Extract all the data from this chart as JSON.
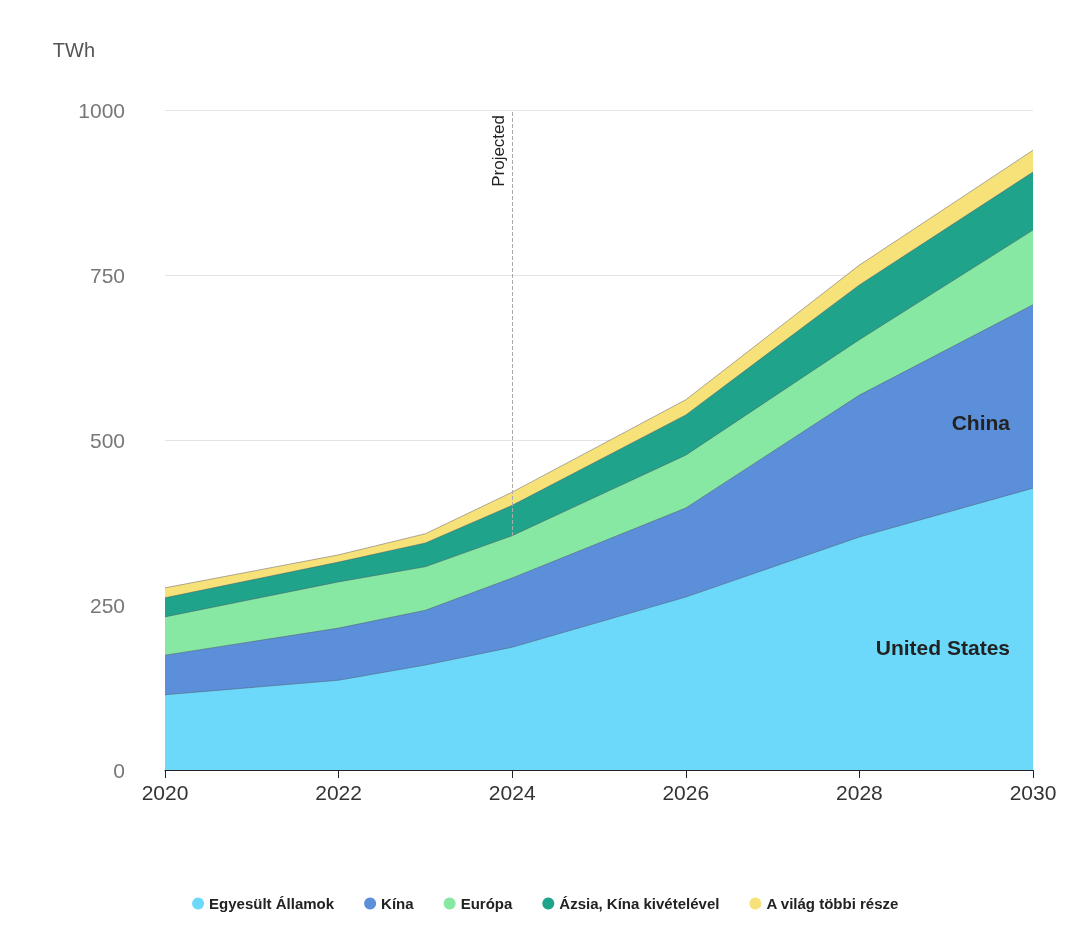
{
  "chart_data": {
    "type": "area",
    "stacked": true,
    "ylabel": "TWh",
    "x": [
      2020,
      2022,
      2023,
      2024,
      2026,
      2028,
      2030
    ],
    "series": [
      {
        "name": "Egyesült Államok",
        "color": "#6cd9fb",
        "values": [
          114,
          136,
          159,
          186,
          262,
          353,
          427
        ]
      },
      {
        "name": "Kína",
        "color": "#5b8fd9",
        "values": [
          60,
          79,
          83,
          105,
          135,
          215,
          278
        ]
      },
      {
        "name": "Európa",
        "color": "#86e8a3",
        "values": [
          58,
          70,
          66,
          64,
          80,
          84,
          113
        ]
      },
      {
        "name": "Ázsia, Kína kivételével",
        "color": "#1fa38a",
        "values": [
          29,
          30,
          36,
          46,
          61,
          83,
          88
        ]
      },
      {
        "name": "A világ többi része",
        "color": "#f7e27a",
        "values": [
          15,
          11,
          14,
          20,
          23,
          30,
          33
        ]
      }
    ],
    "xlim": [
      2020,
      2030
    ],
    "xticks": [
      2020,
      2022,
      2024,
      2026,
      2028,
      2030
    ],
    "ylim": [
      0,
      1000
    ],
    "yticks": [
      0,
      250,
      500,
      750,
      1000
    ],
    "grid": "y",
    "legend": "bottom",
    "ref_lines": [
      {
        "axis": "x",
        "value": 2024,
        "label": "Projected"
      }
    ],
    "annotations": [
      "China",
      "United States"
    ]
  }
}
